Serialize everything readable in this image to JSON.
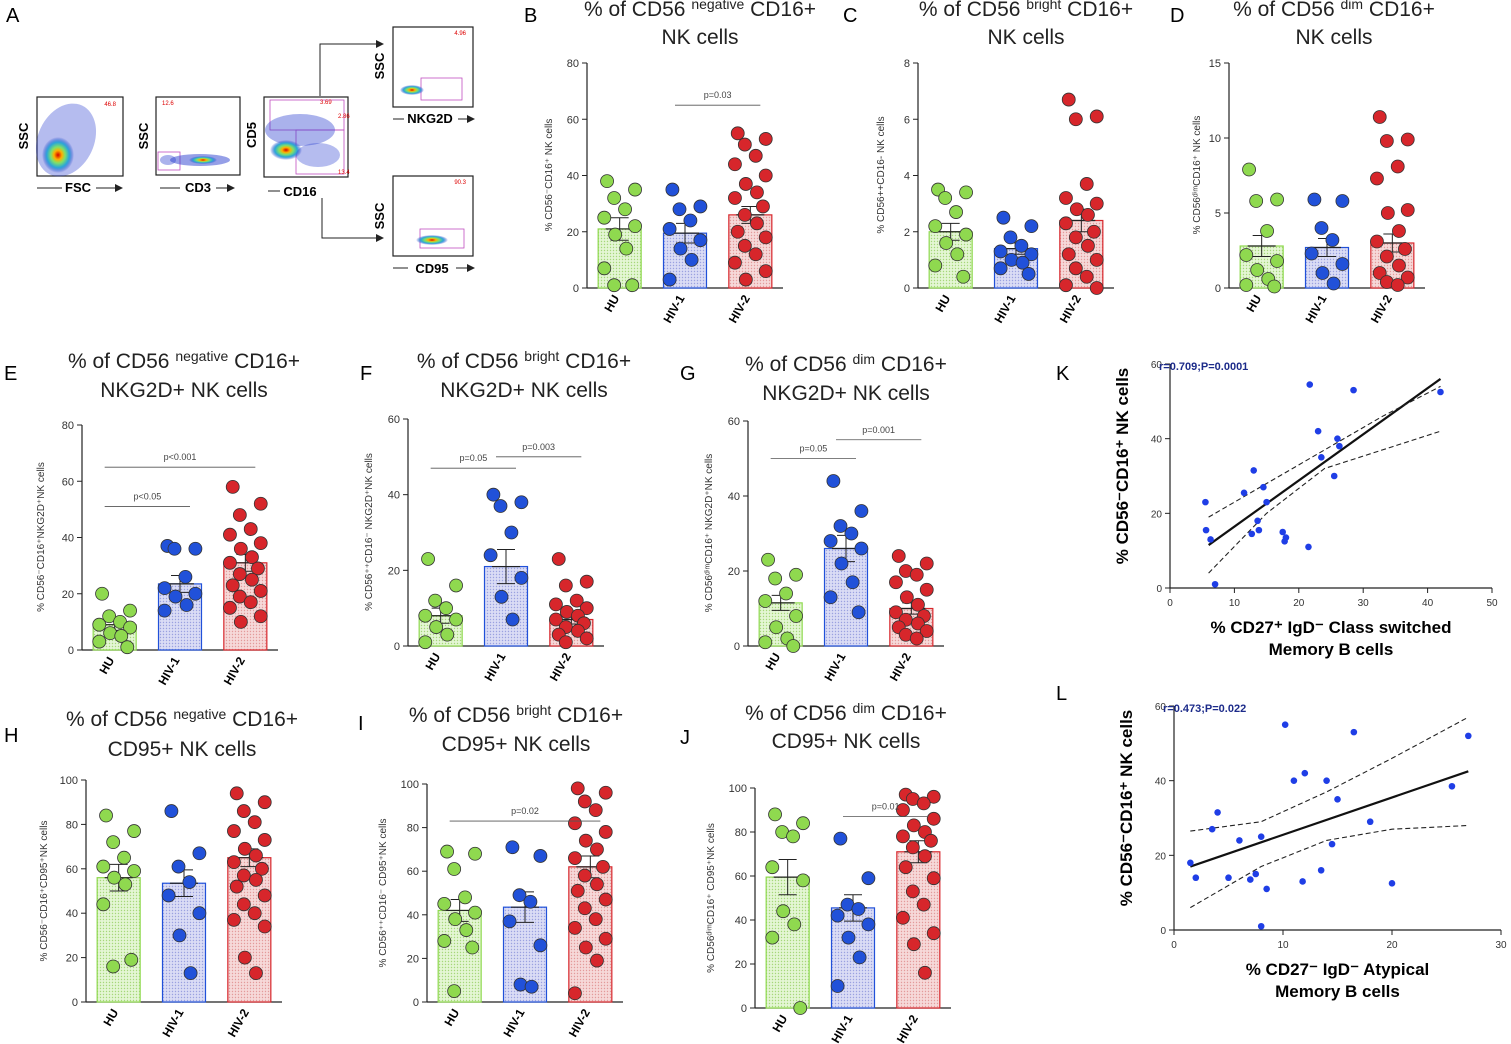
{
  "colors": {
    "hu": "#8fd94f",
    "hiv1": "#2151d9",
    "hiv2": "#d7262b",
    "hu_fill": "#d9f2c4",
    "hiv1_fill": "#c9cdf2",
    "hiv2_fill": "#f2c4c4",
    "dot_blue": "#1f3ee6",
    "corr_text": "#1c2b8a"
  },
  "panel_a": {
    "letter": "A",
    "plots": [
      {
        "x_label": "FSC",
        "y_label": "SSC",
        "gate": "46.8"
      },
      {
        "x_label": "CD3",
        "y_label": "SSC",
        "gate": "12.6"
      },
      {
        "x_label": "CD16",
        "y_label": "CD5",
        "gates": [
          "3.69",
          "2.86",
          "13.4"
        ]
      },
      {
        "x_label": "NKG2D",
        "y_label": "SSC",
        "gate": "4.96"
      },
      {
        "x_label": "CD95",
        "y_label": "SSC",
        "gate": "90.3"
      }
    ]
  },
  "chart_data": [
    {
      "type": "bar",
      "letter": "B",
      "title": [
        "% of CD56 ",
        "negative",
        " CD16+",
        "NK cells"
      ],
      "ylabel": "% CD56⁻CD16⁺ NK cells",
      "ylim": [
        0,
        80
      ],
      "yticks": [
        "0",
        "20",
        "40",
        "60",
        "80"
      ],
      "categories": [
        "HU",
        "HIV-1",
        "HIV-2"
      ],
      "means": [
        21,
        19.5,
        26
      ],
      "sem": [
        4,
        3.5,
        3
      ],
      "points": [
        [
          38,
          35,
          32,
          28,
          25,
          22,
          19,
          14,
          7,
          1,
          1
        ],
        [
          35,
          29,
          28,
          24,
          21,
          17,
          14,
          10,
          3
        ],
        [
          55,
          53,
          51,
          47,
          44,
          40,
          37,
          34,
          32,
          29,
          26,
          23,
          20,
          18,
          15,
          12,
          9,
          6,
          3
        ]
      ],
      "sig": [
        {
          "from": 1,
          "to": 2,
          "text": "p=0.03",
          "y": 65
        }
      ]
    },
    {
      "type": "bar",
      "letter": "C",
      "title": [
        "% of CD56 ",
        "bright",
        " CD16+",
        "NK cells"
      ],
      "ylabel": "% CD56++CD16- NK cells",
      "ylim": [
        0,
        8
      ],
      "yticks": [
        "0",
        "2",
        "4",
        "6",
        "8"
      ],
      "categories": [
        "HU",
        "HIV-1",
        "HIV-2"
      ],
      "means": [
        2,
        1.4,
        2.4
      ],
      "sem": [
        0.3,
        0.2,
        0.4
      ],
      "points": [
        [
          3.5,
          3.4,
          3.2,
          2.7,
          2.2,
          1.9,
          1.6,
          1.2,
          0.8,
          0.4
        ],
        [
          2.5,
          2.2,
          1.8,
          1.5,
          1.3,
          1.2,
          1.0,
          0.9,
          0.7,
          0.5
        ],
        [
          6.7,
          6.1,
          6.0,
          3.7,
          3.2,
          3.0,
          2.8,
          2.6,
          2.3,
          2.0,
          1.8,
          1.5,
          1.2,
          1.0,
          0.7,
          0.4,
          0.1,
          0.0
        ]
      ],
      "sig": []
    },
    {
      "type": "bar",
      "letter": "D",
      "title": [
        "% of CD56 ",
        "dim",
        " CD16+",
        "NK cells"
      ],
      "ylabel": "% CD56ᵈⁱᵐCD16⁺ NK cells",
      "ylim": [
        0,
        15
      ],
      "yticks": [
        "0",
        "5",
        "10",
        "15"
      ],
      "categories": [
        "HU",
        "HIV-1",
        "HIV-2"
      ],
      "means": [
        2.8,
        2.7,
        3.0
      ],
      "sem": [
        0.7,
        0.6,
        0.6
      ],
      "points": [
        [
          7.9,
          5.9,
          5.8,
          3.8,
          2.2,
          1.8,
          1.2,
          0.6,
          0.2,
          0.1
        ],
        [
          5.9,
          5.8,
          4.0,
          3.2,
          2.3,
          1.6,
          1.0,
          0.3
        ],
        [
          11.4,
          9.9,
          9.8,
          8.1,
          7.3,
          5.2,
          5.0,
          3.8,
          3.1,
          2.6,
          2.1,
          1.5,
          1.0,
          0.7,
          0.4,
          0.2
        ]
      ],
      "sig": []
    },
    {
      "type": "bar",
      "letter": "E",
      "title": [
        "% of CD56 ",
        "negative",
        " CD16+",
        "NKG2D+ NK cells"
      ],
      "ylabel": "% CD56⁻CD16⁺NKG2D⁺NK cells",
      "ylim": [
        0,
        80
      ],
      "yticks": [
        "0",
        "20",
        "40",
        "60",
        "80"
      ],
      "categories": [
        "HU",
        "HIV-1",
        "HIV-2"
      ],
      "means": [
        9,
        23.5,
        31
      ],
      "sem": [
        2,
        3,
        3
      ],
      "points": [
        [
          20,
          14,
          12,
          10,
          9,
          8,
          6,
          5,
          3,
          1
        ],
        [
          37,
          36,
          36,
          26,
          22,
          20,
          19,
          16,
          14
        ],
        [
          58,
          52,
          48,
          43,
          41,
          38,
          36,
          33,
          31,
          29,
          27,
          25,
          23,
          21,
          19,
          17,
          15,
          12,
          10
        ]
      ],
      "sig": [
        {
          "from": 0,
          "to": 1,
          "text": "p<0.05",
          "y": 51
        },
        {
          "from": 0,
          "to": 2,
          "text": "p<0.001",
          "y": 65
        }
      ]
    },
    {
      "type": "bar",
      "letter": "F",
      "title": [
        "% of CD56 ",
        "bright",
        " CD16+",
        "NKG2D+ NK cells"
      ],
      "ylabel": "% CD56⁺⁺CD16⁻ NKG2D⁺NK cells",
      "ylim": [
        0,
        60
      ],
      "yticks": [
        "0",
        "20",
        "40",
        "60"
      ],
      "categories": [
        "HU",
        "HIV-1",
        "HIV-2"
      ],
      "means": [
        8,
        21,
        7
      ],
      "sem": [
        2,
        4.5,
        1.2
      ],
      "points": [
        [
          23,
          16,
          12,
          10,
          8,
          7,
          5,
          3,
          1
        ],
        [
          40,
          38,
          37,
          30,
          24,
          18,
          13,
          7
        ],
        [
          23,
          17,
          16,
          12,
          11,
          10,
          9,
          8,
          7,
          6,
          5,
          4,
          3,
          2,
          1
        ]
      ],
      "sig": [
        {
          "from": 0,
          "to": 1,
          "text": "p=0.05",
          "y": 47
        },
        {
          "from": 1,
          "to": 2,
          "text": "p=0.003",
          "y": 50
        }
      ]
    },
    {
      "type": "bar",
      "letter": "G",
      "title": [
        "% of CD56 ",
        "dim",
        " CD16+",
        "NKG2D+ NK cells"
      ],
      "ylabel": "% CD56ᵈⁱᵐCD16⁺ NKG2D⁺NK cells",
      "ylim": [
        0,
        60
      ],
      "yticks": [
        "0",
        "20",
        "40",
        "60"
      ],
      "categories": [
        "HU",
        "HIV-1",
        "HIV-2"
      ],
      "means": [
        11.5,
        26,
        10
      ],
      "sem": [
        2,
        3.5,
        1.5
      ],
      "points": [
        [
          23,
          19,
          18,
          14,
          12,
          8,
          5,
          2,
          1,
          0
        ],
        [
          44,
          36,
          32,
          30,
          28,
          26,
          22,
          17,
          13,
          9
        ],
        [
          24,
          22,
          20,
          19,
          17,
          15,
          13,
          11,
          9,
          8,
          7,
          6,
          5,
          4,
          3,
          2
        ]
      ],
      "sig": [
        {
          "from": 0,
          "to": 1,
          "text": "p=0.05",
          "y": 50
        },
        {
          "from": 1,
          "to": 2,
          "text": "p=0.001",
          "y": 55
        }
      ]
    },
    {
      "type": "bar",
      "letter": "H",
      "title": [
        "% of CD56 ",
        "negative",
        " CD16+",
        "CD95+ NK cells"
      ],
      "ylabel": "% CD56⁻CD16⁺CD95⁺NK cells",
      "ylim": [
        0,
        100
      ],
      "yticks": [
        "0",
        "20",
        "40",
        "60",
        "80",
        "100"
      ],
      "categories": [
        "HU",
        "HIV-1",
        "HIV-2"
      ],
      "means": [
        56,
        53.5,
        65
      ],
      "sem": [
        6,
        6,
        4
      ],
      "points": [
        [
          84,
          77,
          72,
          65,
          61,
          59,
          56,
          53,
          44,
          19,
          16
        ],
        [
          86,
          67,
          61,
          54,
          48,
          40,
          30,
          13
        ],
        [
          94,
          90,
          86,
          81,
          77,
          73,
          69,
          66,
          63,
          60,
          57,
          55,
          52,
          48,
          44,
          40,
          37,
          34,
          20,
          13
        ]
      ],
      "sig": []
    },
    {
      "type": "bar",
      "letter": "I",
      "title": [
        "% of CD56 ",
        "bright",
        " CD16+",
        "CD95+  NK cells"
      ],
      "ylabel": "% CD56⁺⁺CD16⁻ CD95⁺NK cells",
      "ylim": [
        0,
        100
      ],
      "yticks": [
        "0",
        "20",
        "40",
        "60",
        "80",
        "100"
      ],
      "categories": [
        "HU",
        "HIV-1",
        "HIV-2"
      ],
      "means": [
        42,
        43.5,
        62
      ],
      "sem": [
        5,
        7,
        5
      ],
      "points": [
        [
          69,
          68,
          61,
          48,
          45,
          41,
          38,
          33,
          28,
          25,
          5
        ],
        [
          71,
          67,
          49,
          46,
          37,
          26,
          8,
          7
        ],
        [
          98,
          96,
          92,
          88,
          82,
          78,
          74,
          70,
          66,
          62,
          58,
          54,
          51,
          47,
          43,
          38,
          34,
          29,
          25,
          19,
          4
        ]
      ],
      "sig": [
        {
          "from": 0,
          "to": 2,
          "text": "p=0.02",
          "y": 83
        }
      ]
    },
    {
      "type": "bar",
      "letter": "J",
      "title": [
        "% of CD56 ",
        "dim",
        " CD16+",
        "CD95+ NK cells"
      ],
      "ylabel": "% CD56ᵈⁱᵐCD16⁺ CD95⁺NK cells",
      "ylim": [
        0,
        100
      ],
      "yticks": [
        "0",
        "20",
        "40",
        "60",
        "80",
        "100"
      ],
      "categories": [
        "HU",
        "HIV-1",
        "HIV-2"
      ],
      "means": [
        59.5,
        45.5,
        71
      ],
      "sem": [
        8,
        6,
        5
      ],
      "points": [
        [
          88,
          84,
          80,
          78,
          64,
          58,
          44,
          38,
          32,
          0
        ],
        [
          77,
          59,
          47,
          45,
          42,
          38,
          32,
          23,
          10
        ],
        [
          97,
          96,
          95,
          93,
          90,
          86,
          83,
          80,
          78,
          76,
          73,
          69,
          64,
          59,
          53,
          47,
          41,
          34,
          29,
          16
        ]
      ],
      "sig": [
        {
          "from": 1,
          "to": 2,
          "text": "p=0.01",
          "y": 87
        }
      ]
    },
    {
      "type": "scatter",
      "letter": "K",
      "stat": "r=0.709;P=0.0001",
      "ylabel": "% CD56⁻CD16⁺ NK cells",
      "xlabel": [
        "% CD27⁺ IgD⁻ Class switched",
        "Memory B cells"
      ],
      "xlim": [
        0,
        50
      ],
      "ylim": [
        0,
        60
      ],
      "xticks": [
        "0",
        "10",
        "20",
        "30",
        "40",
        "50"
      ],
      "yticks": [
        "0",
        "20",
        "40",
        "60"
      ],
      "points": [
        [
          5.5,
          23
        ],
        [
          5.6,
          15.5
        ],
        [
          6.3,
          13
        ],
        [
          7,
          1
        ],
        [
          11.5,
          25.5
        ],
        [
          12.7,
          14.5
        ],
        [
          13,
          31.5
        ],
        [
          13.6,
          18
        ],
        [
          13.8,
          15.5
        ],
        [
          14.5,
          27
        ],
        [
          15,
          23
        ],
        [
          17.5,
          15
        ],
        [
          17.8,
          12.5
        ],
        [
          18,
          13.5
        ],
        [
          21.5,
          11
        ],
        [
          21.7,
          54.5
        ],
        [
          23,
          42
        ],
        [
          23.5,
          35
        ],
        [
          25.5,
          30
        ],
        [
          26,
          40
        ],
        [
          26.3,
          38
        ],
        [
          28.5,
          53
        ],
        [
          42,
          52.5
        ]
      ],
      "fit": [
        [
          6,
          11.5
        ],
        [
          42,
          56
        ]
      ],
      "ci_upper": [
        [
          6,
          19
        ],
        [
          15,
          28
        ],
        [
          24,
          37
        ],
        [
          33,
          46
        ],
        [
          42,
          54
        ]
      ],
      "ci_lower": [
        [
          6,
          4
        ],
        [
          15,
          20
        ],
        [
          24,
          32
        ],
        [
          33,
          37
        ],
        [
          42,
          42
        ]
      ]
    },
    {
      "type": "scatter",
      "letter": "L",
      "stat": "r=0.473;P=0.022",
      "ylabel": "% CD56⁻CD16⁺ NK cells",
      "xlabel": [
        "% CD27⁻ IgD⁻ Atypical",
        "Memory B cells"
      ],
      "xlim": [
        0,
        30
      ],
      "ylim": [
        0,
        60
      ],
      "xticks": [
        "0",
        "10",
        "20",
        "30"
      ],
      "yticks": [
        "0",
        "20",
        "40",
        "60"
      ],
      "points": [
        [
          1.5,
          18
        ],
        [
          2,
          14
        ],
        [
          3.5,
          27
        ],
        [
          4,
          31.5
        ],
        [
          5,
          14
        ],
        [
          6,
          24
        ],
        [
          7,
          13.5
        ],
        [
          7.5,
          15
        ],
        [
          8,
          25
        ],
        [
          8,
          1
        ],
        [
          8.5,
          11
        ],
        [
          10.2,
          55
        ],
        [
          11,
          40
        ],
        [
          11.8,
          13
        ],
        [
          12,
          42
        ],
        [
          13.5,
          16
        ],
        [
          14,
          40
        ],
        [
          14.5,
          23
        ],
        [
          15,
          35
        ],
        [
          16.5,
          53
        ],
        [
          18,
          29
        ],
        [
          20,
          12.5
        ],
        [
          25.5,
          38.5
        ],
        [
          27,
          52
        ]
      ],
      "fit": [
        [
          1.5,
          17
        ],
        [
          27,
          42.5
        ]
      ],
      "ci_upper": [
        [
          1.5,
          26.5
        ],
        [
          8,
          29
        ],
        [
          14,
          37
        ],
        [
          20,
          46
        ],
        [
          27,
          57
        ]
      ],
      "ci_lower": [
        [
          1.5,
          6
        ],
        [
          8,
          17
        ],
        [
          14,
          24
        ],
        [
          20,
          27
        ],
        [
          27,
          28
        ]
      ]
    }
  ]
}
